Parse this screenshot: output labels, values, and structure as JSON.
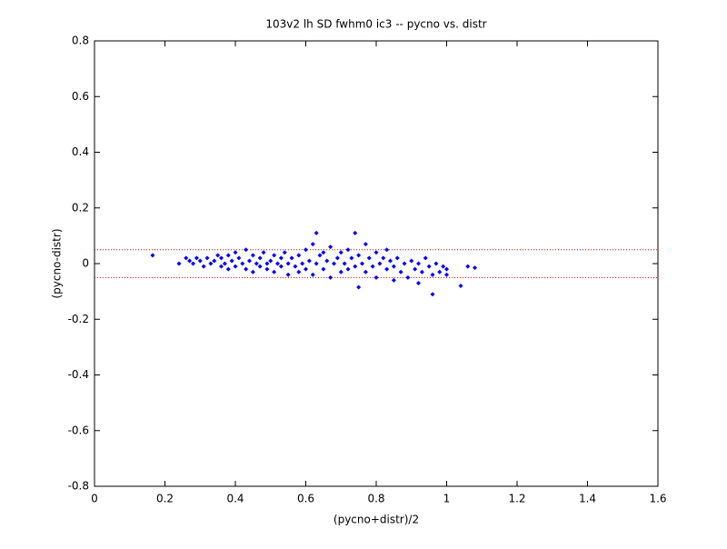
{
  "chart_data": {
    "type": "scatter",
    "title": "103v2 lh SD fwhm0 ic3 -- pycno vs. distr",
    "xlabel": "(pycno+distr)/2",
    "ylabel": "(pycno-distr)",
    "xlim": [
      0,
      1.6
    ],
    "ylim": [
      -0.8,
      0.8
    ],
    "xticks": [
      0,
      0.2,
      0.4,
      0.6,
      0.8,
      1,
      1.2,
      1.4,
      1.6
    ],
    "yticks": [
      -0.8,
      -0.6,
      -0.4,
      -0.2,
      0,
      0.2,
      0.4,
      0.6,
      0.8
    ],
    "reference_lines": [
      0.05,
      -0.05
    ],
    "reference_color": "#ff0000",
    "color": "#0000ff",
    "x": [
      0.165,
      0.24,
      0.26,
      0.27,
      0.28,
      0.29,
      0.3,
      0.31,
      0.32,
      0.33,
      0.34,
      0.35,
      0.36,
      0.36,
      0.37,
      0.38,
      0.38,
      0.39,
      0.4,
      0.4,
      0.41,
      0.42,
      0.43,
      0.43,
      0.44,
      0.45,
      0.45,
      0.46,
      0.47,
      0.47,
      0.48,
      0.49,
      0.49,
      0.5,
      0.51,
      0.51,
      0.52,
      0.53,
      0.53,
      0.54,
      0.55,
      0.55,
      0.56,
      0.57,
      0.58,
      0.58,
      0.59,
      0.6,
      0.6,
      0.61,
      0.62,
      0.62,
      0.63,
      0.63,
      0.64,
      0.65,
      0.65,
      0.66,
      0.67,
      0.67,
      0.68,
      0.69,
      0.7,
      0.7,
      0.71,
      0.72,
      0.72,
      0.73,
      0.74,
      0.74,
      0.75,
      0.75,
      0.76,
      0.77,
      0.77,
      0.78,
      0.79,
      0.8,
      0.8,
      0.81,
      0.82,
      0.83,
      0.83,
      0.84,
      0.85,
      0.85,
      0.86,
      0.87,
      0.88,
      0.89,
      0.9,
      0.91,
      0.92,
      0.92,
      0.93,
      0.94,
      0.95,
      0.96,
      0.96,
      0.97,
      0.98,
      0.99,
      1.0,
      1.0,
      1.04,
      1.06,
      1.08
    ],
    "y": [
      0.03,
      0.0,
      0.02,
      0.01,
      0.0,
      0.02,
      0.01,
      -0.01,
      0.02,
      0.0,
      0.01,
      0.03,
      -0.01,
      0.02,
      0.0,
      0.03,
      -0.02,
      0.01,
      0.04,
      -0.01,
      0.02,
      0.0,
      0.05,
      -0.02,
      0.01,
      0.03,
      -0.03,
      0.0,
      0.02,
      -0.01,
      0.04,
      0.0,
      -0.02,
      0.01,
      0.03,
      -0.03,
      0.0,
      0.02,
      -0.01,
      0.04,
      0.0,
      -0.04,
      0.02,
      -0.01,
      0.03,
      -0.03,
      0.0,
      0.05,
      -0.02,
      0.01,
      0.07,
      -0.04,
      0.11,
      0.0,
      0.03,
      -0.02,
      0.04,
      0.01,
      -0.05,
      0.06,
      0.0,
      0.02,
      -0.03,
      0.04,
      0.0,
      0.05,
      -0.02,
      0.02,
      0.11,
      -0.01,
      -0.085,
      0.03,
      0.0,
      0.07,
      -0.03,
      0.02,
      -0.01,
      0.04,
      -0.05,
      0.0,
      0.02,
      -0.02,
      0.05,
      0.01,
      -0.06,
      -0.01,
      0.02,
      -0.03,
      0.0,
      -0.05,
      0.01,
      -0.02,
      -0.07,
      0.0,
      -0.03,
      0.02,
      -0.01,
      -0.11,
      -0.04,
      0.0,
      -0.03,
      -0.01,
      -0.04,
      -0.02,
      -0.08,
      -0.01,
      -0.015
    ]
  }
}
